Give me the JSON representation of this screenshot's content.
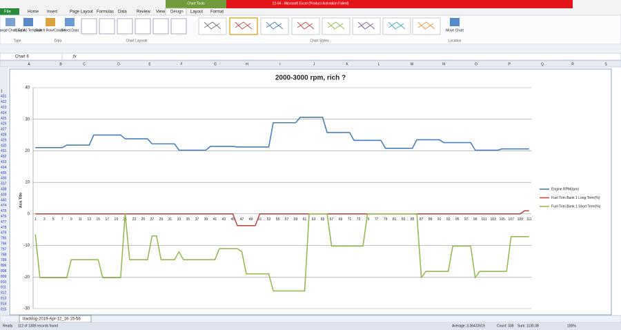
{
  "window": {
    "title": "12-04 - Microsoft Excel (Product Activation Failed)",
    "context": "Chart Tools"
  },
  "ribbon": {
    "tabs": [
      "File",
      "Home",
      "Insert",
      "Page Layout",
      "Formulas",
      "Data",
      "Review",
      "View",
      "Design",
      "Layout",
      "Format"
    ],
    "buttons": [
      "Change Chart Type",
      "Save As Template",
      "Switch Row/Column",
      "Select Data",
      "Move Chart"
    ],
    "groups": [
      "Type",
      "Data",
      "Chart Layouts",
      "Chart Styles",
      "Location"
    ]
  },
  "formula_bar": {
    "name_box": "Chart 6",
    "fx": "fx"
  },
  "columns": [
    "A",
    "B",
    "C",
    "D",
    "E",
    "F",
    "G",
    "H",
    "I",
    "J",
    "K",
    "L",
    "M",
    "N",
    "O",
    "P",
    "Q",
    "R",
    "S"
  ],
  "rows": [
    "1",
    "421",
    "422",
    "423",
    "424",
    "425",
    "426",
    "427",
    "428",
    "429",
    "430",
    "431",
    "432",
    "433",
    "434",
    "435",
    "436",
    "437",
    "438",
    "439",
    "440",
    "474",
    "475",
    "476",
    "477",
    "478",
    "479",
    "795",
    "796",
    "797",
    "798",
    "799",
    "806",
    "808",
    "809",
    "810",
    "811",
    "812",
    "813",
    "814",
    "815"
  ],
  "sheet_tab": "tracklog-2019-Apr-12_16-15-56",
  "status_bar": {
    "mode": "Ready",
    "filter": "112 of 1308 records found",
    "average": "Average: 3.36422619",
    "count": "Count: 339",
    "sum": "Sum: 1130.38",
    "zoom": "100%"
  },
  "chart_data": {
    "type": "line",
    "title": "2000-3000 rpm, rich ?",
    "y_label": "Axis Title",
    "categories": [
      1,
      null,
      3,
      null,
      5,
      null,
      7,
      null,
      9,
      null,
      11,
      null,
      13,
      null,
      15,
      null,
      17,
      null,
      19,
      null,
      21,
      null,
      23,
      null,
      25,
      null,
      27,
      null,
      29,
      null,
      31,
      null,
      33,
      null,
      35,
      null,
      37,
      null,
      39,
      null,
      41,
      null,
      43,
      null,
      45,
      null,
      47,
      null,
      49,
      null,
      51,
      null,
      53,
      null,
      55,
      null,
      57,
      null,
      59,
      null,
      61,
      null,
      63,
      null,
      65,
      null,
      67,
      null,
      69,
      null,
      71,
      null,
      73,
      null,
      75,
      null,
      77,
      null,
      79,
      null,
      81,
      null,
      83,
      null,
      85,
      null,
      87,
      null,
      89,
      null,
      91,
      null,
      93,
      null,
      95,
      null,
      97,
      null,
      99,
      null,
      101,
      null,
      103,
      null,
      105,
      null,
      107,
      null,
      109,
      null,
      111
    ],
    "ylim": [
      -30,
      40
    ],
    "yticks": [
      -30,
      -20,
      -10,
      0,
      10,
      20,
      30,
      40
    ],
    "grid": true,
    "legend": "right",
    "series": [
      {
        "name": "Engine RPM(rpm)",
        "color": "#4a7ebb",
        "values": [
          21,
          21,
          21,
          21,
          21,
          21,
          21,
          21.8,
          21.8,
          21.8,
          21.8,
          21.8,
          21.8,
          25,
          25,
          25,
          25,
          25,
          25,
          25,
          23.8,
          23.8,
          23.8,
          23.8,
          23.8,
          23.8,
          22.2,
          22.2,
          22.2,
          22.2,
          22.2,
          22.2,
          20.2,
          20.2,
          20.2,
          20.2,
          20.2,
          20.2,
          20.2,
          21.4,
          21.4,
          21.4,
          21.4,
          21.4,
          21.4,
          21.2,
          21.2,
          21.2,
          21.2,
          21.2,
          21.2,
          21.2,
          21.2,
          28.9,
          28.9,
          28.9,
          28.9,
          28.9,
          28.9,
          30.6,
          30.6,
          30.6,
          30.6,
          30.6,
          30.6,
          25.8,
          25.8,
          25.8,
          25.8,
          25.8,
          25.8,
          23.3,
          23.3,
          23.3,
          23.3,
          23.3,
          23.3,
          23.3,
          20.8,
          20.8,
          20.8,
          20.8,
          20.8,
          20.8,
          20.8,
          23.5,
          23.5,
          23.5,
          23.5,
          23.5,
          23.5,
          22.6,
          22.6,
          22.6,
          22.6,
          22.6,
          22.6,
          22.6,
          20.2,
          20.2,
          20.2,
          20.2,
          20.2,
          20.2,
          20.6,
          20.6,
          20.6,
          20.6,
          20.6,
          20.6,
          20.6
        ]
      },
      {
        "name": "Fuel Trim Bank 1 Long Term(%)",
        "color": "#be4b48",
        "values": [
          0,
          0,
          0,
          0,
          0,
          0,
          0,
          0,
          0,
          0,
          0,
          0,
          0,
          0,
          0,
          0,
          0,
          0,
          0,
          0,
          0,
          0,
          0,
          0,
          0,
          0,
          0,
          0,
          0,
          0,
          0,
          0,
          0,
          0,
          0,
          0,
          0,
          0,
          0,
          0,
          0,
          0,
          0,
          0,
          0,
          -3.7,
          -3.7,
          -3.7,
          -3.7,
          -3.7,
          0,
          0,
          0,
          0,
          0,
          0,
          0,
          0,
          0,
          0,
          0,
          0,
          0,
          0,
          0,
          0,
          0,
          0,
          0,
          0,
          0,
          0,
          0,
          0,
          0,
          0,
          0,
          0,
          0,
          0,
          0,
          0,
          0,
          0,
          0,
          0,
          0,
          0,
          0,
          0,
          0,
          0,
          0,
          0,
          0,
          0,
          0,
          0,
          0,
          0,
          0,
          0,
          0,
          0,
          0,
          0,
          0,
          0,
          0,
          1,
          1
        ]
      },
      {
        "name": "Fuel Trim Bank 1 Short Term(%)",
        "color": "#98b954",
        "values": [
          -6.5,
          -20.2,
          -20.2,
          -20.2,
          -20.2,
          -20.2,
          -20.2,
          -20.2,
          -14.5,
          -14.5,
          -14.5,
          -14.5,
          -14.5,
          -14.5,
          -14.5,
          -20.2,
          -20.2,
          -20.2,
          -20.2,
          -20.2,
          0,
          -14.5,
          -14.5,
          -14.5,
          -14.5,
          -14.5,
          -7,
          -7,
          -14.5,
          -14.5,
          -14.5,
          -14.5,
          -12,
          -14.5,
          -14.5,
          -14.5,
          -14.5,
          -14.5,
          -14.5,
          -14.5,
          -14.5,
          -11,
          -11,
          -11,
          -11,
          -11,
          -12,
          -19,
          -19,
          -19,
          -19,
          -19,
          -19,
          -24.4,
          -24.4,
          -24.4,
          -24.4,
          -24.4,
          -24.4,
          -24.4,
          -24.4,
          0,
          0,
          0,
          0,
          0,
          -10.2,
          -10.2,
          -10.2,
          -10.2,
          -10.2,
          -10.2,
          -10.2,
          -10.2,
          0,
          0,
          0,
          0,
          0,
          0,
          0,
          0,
          0,
          0,
          0,
          0,
          -20.2,
          -18.2,
          -18.2,
          -18.2,
          -18.2,
          -18.2,
          -18.2,
          -10.2,
          -10.2,
          -10.2,
          -10.2,
          -10.2,
          -20.2,
          -18.2,
          -18.2,
          -18.2,
          -18.2,
          -18.2,
          -18.2,
          -18.2,
          -7.2,
          -7.2,
          -7.2,
          -7.2,
          -7.2
        ]
      }
    ]
  }
}
